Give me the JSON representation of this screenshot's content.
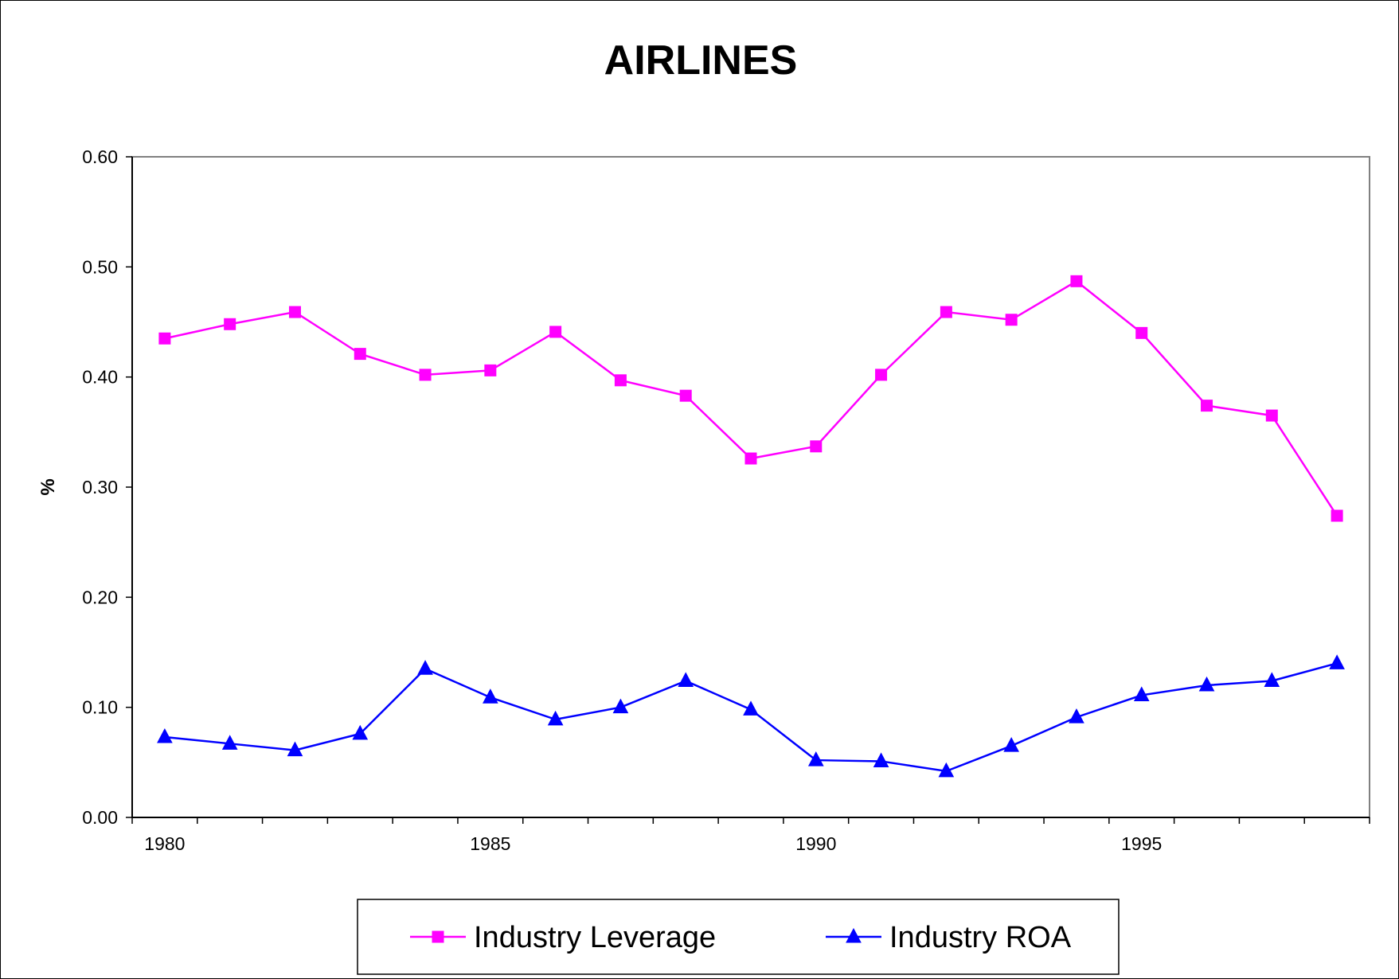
{
  "chart_data": {
    "type": "line",
    "title": "AIRLINES",
    "xlabel": "",
    "ylabel": "%",
    "x": [
      1980,
      1981,
      1982,
      1983,
      1984,
      1985,
      1986,
      1987,
      1988,
      1989,
      1990,
      1991,
      1992,
      1993,
      1994,
      1995,
      1996,
      1997,
      1998
    ],
    "xtick_labels": [
      "1980",
      "1985",
      "1990",
      "1995"
    ],
    "xlim": [
      1979.5,
      1998.5
    ],
    "ylim": [
      0,
      0.6
    ],
    "ytick_labels": [
      "0.00",
      "0.10",
      "0.20",
      "0.30",
      "0.40",
      "0.50",
      "0.60"
    ],
    "grid": false,
    "legend_position": "bottom",
    "series": [
      {
        "name": "Industry Leverage",
        "color": "#ff00ff",
        "marker": "square",
        "values": [
          0.435,
          0.448,
          0.459,
          0.421,
          0.402,
          0.406,
          0.441,
          0.397,
          0.383,
          0.326,
          0.337,
          0.402,
          0.459,
          0.452,
          0.487,
          0.44,
          0.374,
          0.365,
          0.274
        ]
      },
      {
        "name": "Industry ROA",
        "color": "#0000ff",
        "marker": "triangle",
        "values": [
          0.073,
          0.067,
          0.061,
          0.076,
          0.135,
          0.109,
          0.089,
          0.1,
          0.124,
          0.098,
          0.052,
          0.051,
          0.042,
          0.065,
          0.091,
          0.111,
          0.12,
          0.124,
          0.14
        ]
      }
    ]
  }
}
